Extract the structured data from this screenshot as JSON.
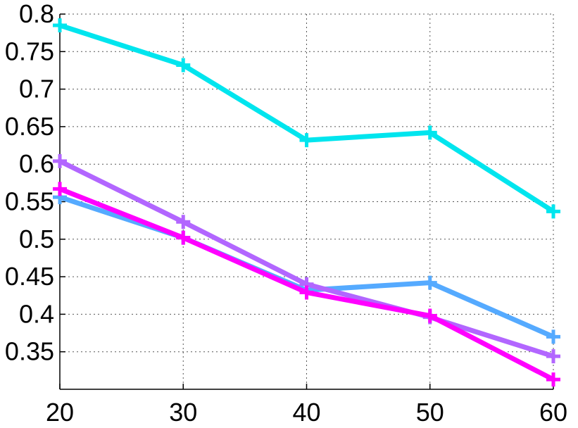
{
  "chart_data": {
    "type": "line",
    "x": [
      20,
      30,
      40,
      50,
      60
    ],
    "xlim": [
      20,
      60
    ],
    "ylim": [
      0.3,
      0.8
    ],
    "grid": true,
    "x_ticks": [
      "20",
      "30",
      "40",
      "50",
      "60"
    ],
    "y_ticks": [
      "0.35",
      "0.4",
      "0.45",
      "0.5",
      "0.55",
      "0.6",
      "0.65",
      "0.7",
      "0.75",
      "0.8"
    ],
    "series": [
      {
        "color": "#00e5ee",
        "values": [
          0.785,
          0.732,
          0.632,
          0.642,
          0.537
        ]
      },
      {
        "color": "#55aaff",
        "values": [
          0.556,
          0.502,
          0.432,
          0.442,
          0.37
        ]
      },
      {
        "color": "#b266ff",
        "values": [
          0.604,
          0.523,
          0.44,
          0.396,
          0.344
        ]
      },
      {
        "color": "#ff00ff",
        "values": [
          0.567,
          0.502,
          0.429,
          0.398,
          0.313
        ]
      }
    ]
  }
}
